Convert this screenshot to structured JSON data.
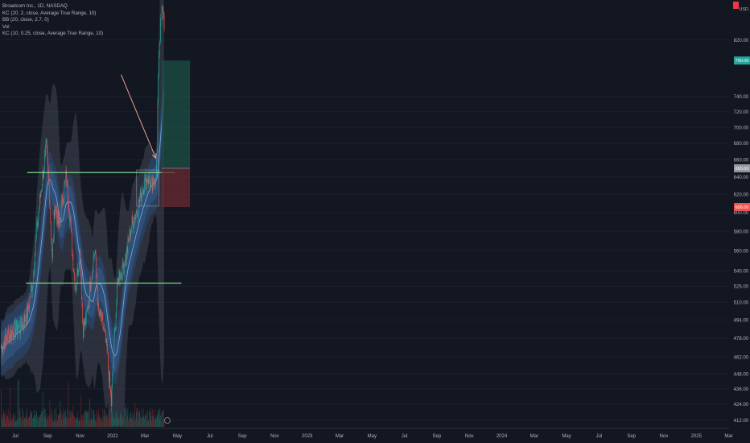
{
  "legend": {
    "line1": "Broadcom Inc., 1D, NASDAQ",
    "line2": "KC (20, 2, close, Average True Range, 10)",
    "line3": "BB (20, close, 2.7, 0)",
    "line4": "Vol",
    "line5": "KC (10, 0.25, close, Average True Range, 10)"
  },
  "price_axis": {
    "currency": "USD",
    "top_badge": "",
    "target_label": "790.00",
    "current_label": "650.00",
    "stop_label": "606.00"
  },
  "chart_data": {
    "type": "candlestick",
    "symbol": "Broadcom Inc.",
    "interval": "1D",
    "exchange": "NASDAQ",
    "y_scale": "log",
    "ylim": [
      407,
      870
    ],
    "y_ticks": [
      412,
      424,
      436,
      448,
      462,
      478,
      494,
      510,
      525,
      540,
      560,
      580,
      600,
      620,
      640,
      660,
      680,
      700,
      720,
      740,
      820
    ],
    "x_tick_labels": [
      "Jul",
      "Sep",
      "Nov",
      "2022",
      "Mar",
      "May",
      "Jul",
      "Sep",
      "Nov",
      "2023",
      "Mar",
      "May",
      "Jul",
      "Sep",
      "Nov",
      "2024",
      "Mar",
      "May",
      "Jul",
      "Sep",
      "Nov",
      "2025",
      "Mar"
    ],
    "price_path": [
      [
        "2021-06-01",
        470
      ],
      [
        "2021-07-01",
        480
      ],
      [
        "2021-08-01",
        485
      ],
      [
        "2021-09-01",
        488
      ],
      [
        "2021-10-01",
        500
      ],
      [
        "2021-10-25",
        530
      ],
      [
        "2021-11-15",
        585
      ],
      [
        "2021-12-10",
        640
      ],
      [
        "2021-12-28",
        675
      ],
      [
        "2022-01-10",
        625
      ],
      [
        "2022-01-24",
        548
      ],
      [
        "2022-02-05",
        612
      ],
      [
        "2022-02-24",
        582
      ],
      [
        "2022-03-10",
        612
      ],
      [
        "2022-03-29",
        640
      ],
      [
        "2022-04-12",
        608
      ],
      [
        "2022-04-26",
        560
      ],
      [
        "2022-05-12",
        522
      ],
      [
        "2022-06-01",
        560
      ],
      [
        "2022-06-15",
        486
      ],
      [
        "2022-07-01",
        495
      ],
      [
        "2022-08-01",
        550
      ],
      [
        "2022-08-10",
        562
      ],
      [
        "2022-08-25",
        500
      ],
      [
        "2022-09-15",
        490
      ],
      [
        "2022-10-05",
        466
      ],
      [
        "2022-10-24",
        424
      ],
      [
        "2022-11-10",
        485
      ],
      [
        "2022-11-25",
        535
      ],
      [
        "2022-12-15",
        540
      ],
      [
        "2023-01-05",
        560
      ],
      [
        "2023-01-25",
        585
      ],
      [
        "2023-02-15",
        600
      ],
      [
        "2023-03-01",
        610
      ],
      [
        "2023-03-20",
        630
      ],
      [
        "2023-04-10",
        640
      ],
      [
        "2023-05-01",
        625
      ],
      [
        "2023-05-15",
        640
      ],
      [
        "2023-05-24",
        660
      ],
      [
        "2023-05-31",
        800
      ],
      [
        "2023-06-10",
        840
      ],
      [
        "2023-06-20",
        870
      ],
      [
        "2023-06-27",
        845
      ]
    ],
    "horizontal_levels": [
      {
        "price": 645,
        "from": "2021-10-01",
        "to": "2023-08-15"
      },
      {
        "price": 528,
        "from": "2021-09-25",
        "to": "2023-09-15"
      }
    ],
    "consolidation_box": {
      "from": "2023-02-20",
      "to": "2023-06-03",
      "top": 648,
      "bottom": 607
    },
    "arrow": {
      "from": [
        "2022-12-10",
        770
      ],
      "to": [
        "2023-05-20",
        662
      ]
    },
    "long_position": {
      "entry": 650,
      "target": 790,
      "stop": 606,
      "from": "2023-06-15",
      "to": "2023-10-25"
    },
    "volume": {
      "label": "Vol"
    }
  }
}
